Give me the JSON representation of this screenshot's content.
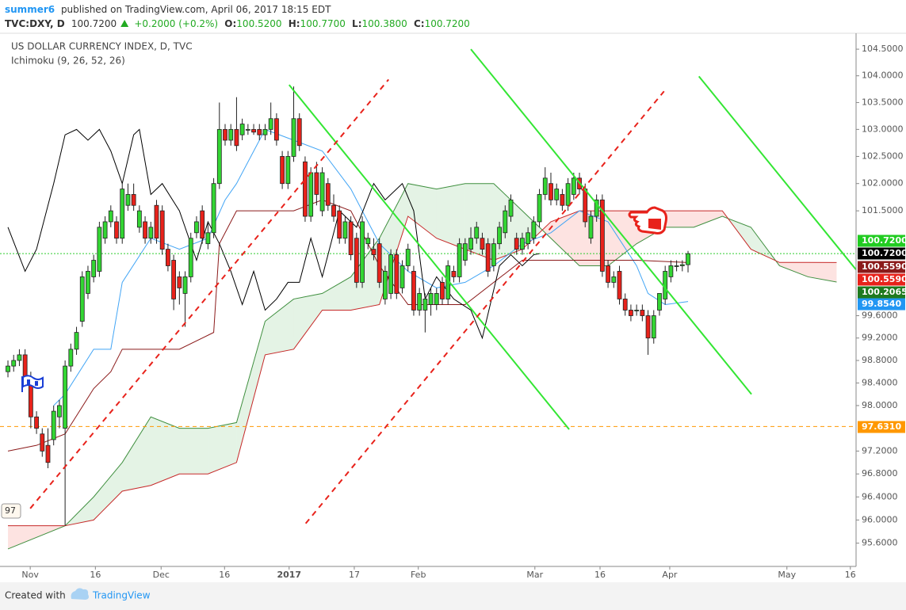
{
  "header": {
    "author": "summer6",
    "published": "published on TradingView.com, April 06, 2017 18:15 EDT",
    "symbol": "TVC:DXY, D",
    "last": "100.7200",
    "change": "+0.2000 (+0.2%)",
    "ohlc": [
      {
        "label": "O:",
        "value": "100.5200"
      },
      {
        "label": "H:",
        "value": "100.7700"
      },
      {
        "label": "L:",
        "value": "100.3800"
      },
      {
        "label": "C:",
        "value": "100.7200"
      }
    ]
  },
  "footer": {
    "created": "Created with",
    "brand": "TradingView"
  },
  "chart_data": {
    "type": "candlestick",
    "title": "US DOLLAR CURRENCY INDEX, D, TVC",
    "indicator": "Ichimoku (9, 26, 52, 26)",
    "log_scale": true,
    "grid": false,
    "left_label": "97",
    "xlim": [
      -1.39,
      148.4
    ],
    "ylim": [
      95.2,
      104.8
    ],
    "xticks": [
      {
        "value": 3.9,
        "label": "Nov"
      },
      {
        "value": 15.3,
        "label": "16"
      },
      {
        "value": 26.8,
        "label": "Dec"
      },
      {
        "value": 37.9,
        "label": "16"
      },
      {
        "value": 49.2,
        "label": "2017"
      },
      {
        "value": 60.6,
        "label": "17"
      },
      {
        "value": 71.8,
        "label": "Feb"
      },
      {
        "value": 92.2,
        "label": "Mar"
      },
      {
        "value": 103.6,
        "label": "16"
      },
      {
        "value": 115.8,
        "label": "Apr"
      },
      {
        "value": 136.3,
        "label": "May"
      },
      {
        "value": 147.4,
        "label": "16"
      }
    ],
    "yticks": [
      {
        "value": 104.5,
        "label": "104.5000"
      },
      {
        "value": 104.0,
        "label": "104.0000"
      },
      {
        "value": 103.5,
        "label": "103.5000"
      },
      {
        "value": 103.0,
        "label": "103.0000"
      },
      {
        "value": 102.5,
        "label": "102.5000"
      },
      {
        "value": 102.0,
        "label": "102.0000"
      },
      {
        "value": 101.5,
        "label": "101.5000"
      },
      {
        "value": 99.6,
        "label": "99.6000"
      },
      {
        "value": 99.2,
        "label": "99.2000"
      },
      {
        "value": 98.8,
        "label": "98.8000"
      },
      {
        "value": 98.4,
        "label": "98.4000"
      },
      {
        "value": 98.0,
        "label": "98.0000"
      },
      {
        "value": 97.2,
        "label": "97.2000"
      },
      {
        "value": 96.8,
        "label": "96.8000"
      },
      {
        "value": 96.4,
        "label": "96.4000"
      },
      {
        "value": 96.0,
        "label": "96.0000"
      },
      {
        "value": 95.6,
        "label": "95.6000"
      }
    ],
    "up_color": "#33d633",
    "down_color": "#e8221b",
    "ohlc": [
      [
        98.6,
        98.8,
        98.5,
        98.7
      ],
      [
        98.7,
        98.9,
        98.6,
        98.8
      ],
      [
        98.8,
        99.0,
        98.7,
        98.9
      ],
      [
        98.9,
        99.0,
        98.4,
        98.5
      ],
      [
        98.5,
        98.6,
        97.6,
        97.8
      ],
      [
        97.8,
        97.9,
        97.5,
        97.6
      ],
      [
        97.5,
        97.6,
        97.1,
        97.2
      ],
      [
        97.3,
        97.6,
        96.9,
        97.0
      ],
      [
        97.4,
        98.0,
        97.3,
        97.9
      ],
      [
        97.8,
        98.1,
        97.6,
        98.0
      ],
      [
        97.6,
        98.8,
        95.9,
        98.7
      ],
      [
        98.7,
        99.1,
        98.6,
        99.0
      ],
      [
        99.0,
        99.4,
        98.9,
        99.3
      ],
      [
        99.5,
        100.4,
        99.4,
        100.3
      ],
      [
        100.0,
        100.5,
        99.9,
        100.4
      ],
      [
        100.3,
        100.7,
        100.2,
        100.6
      ],
      [
        100.4,
        101.3,
        100.3,
        101.2
      ],
      [
        101.0,
        101.4,
        100.9,
        101.3
      ],
      [
        101.3,
        101.6,
        101.2,
        101.5
      ],
      [
        101.3,
        101.4,
        100.9,
        101.0
      ],
      [
        101.0,
        102.0,
        100.9,
        101.9
      ],
      [
        101.6,
        102.0,
        101.5,
        101.8
      ],
      [
        101.8,
        102.0,
        101.5,
        101.6
      ],
      [
        101.2,
        101.6,
        101.1,
        101.5
      ],
      [
        101.3,
        101.4,
        100.9,
        101.0
      ],
      [
        101.0,
        101.3,
        100.9,
        101.2
      ],
      [
        101.6,
        101.7,
        100.9,
        101.0
      ],
      [
        101.5,
        101.6,
        100.7,
        100.8
      ],
      [
        100.8,
        100.9,
        100.4,
        100.5
      ],
      [
        100.6,
        100.7,
        99.7,
        99.9
      ],
      [
        100.3,
        100.4,
        99.8,
        100.1
      ],
      [
        100.0,
        100.4,
        99.4,
        100.3
      ],
      [
        100.3,
        101.1,
        100.2,
        101.0
      ],
      [
        101.1,
        101.4,
        101.0,
        101.3
      ],
      [
        101.5,
        101.6,
        100.9,
        101.0
      ],
      [
        100.9,
        101.3,
        100.8,
        101.1
      ],
      [
        101.1,
        102.1,
        101.0,
        102.0
      ],
      [
        102.0,
        103.5,
        101.9,
        103.0
      ],
      [
        103.0,
        103.1,
        102.7,
        102.8
      ],
      [
        102.8,
        103.1,
        102.7,
        103.0
      ],
      [
        103.0,
        103.6,
        102.6,
        102.7
      ],
      [
        102.9,
        103.2,
        102.8,
        103.1
      ],
      [
        103.0,
        103.1,
        102.9,
        103.0
      ],
      [
        103.0,
        103.1,
        102.9,
        102.95
      ],
      [
        103.0,
        103.1,
        102.8,
        102.9
      ],
      [
        102.9,
        103.1,
        102.8,
        103.0
      ],
      [
        103.0,
        103.5,
        102.9,
        103.2
      ],
      [
        103.2,
        103.3,
        102.7,
        102.8
      ],
      [
        102.5,
        102.6,
        101.9,
        102.0
      ],
      [
        102.0,
        102.6,
        101.9,
        102.5
      ],
      [
        102.5,
        103.8,
        102.4,
        103.2
      ],
      [
        103.2,
        103.3,
        102.6,
        102.7
      ],
      [
        102.4,
        102.5,
        101.3,
        101.4
      ],
      [
        101.4,
        102.3,
        101.3,
        102.2
      ],
      [
        102.2,
        102.4,
        101.6,
        101.8
      ],
      [
        101.5,
        102.3,
        101.4,
        102.2
      ],
      [
        102.0,
        102.1,
        101.5,
        101.6
      ],
      [
        101.6,
        101.8,
        101.3,
        101.4
      ],
      [
        101.5,
        101.6,
        100.9,
        101.0
      ],
      [
        101.0,
        101.4,
        100.9,
        101.3
      ],
      [
        101.3,
        101.4,
        100.6,
        100.7
      ],
      [
        101.0,
        101.1,
        100.1,
        100.2
      ],
      [
        100.2,
        101.4,
        100.1,
        101.3
      ],
      [
        100.9,
        101.1,
        100.8,
        101.0
      ],
      [
        100.8,
        101.0,
        100.6,
        100.7
      ],
      [
        100.9,
        101.0,
        100.1,
        100.2
      ],
      [
        99.9,
        100.5,
        99.8,
        100.4
      ],
      [
        100.0,
        100.8,
        99.9,
        100.7
      ],
      [
        100.7,
        100.8,
        99.9,
        100.0
      ],
      [
        100.1,
        100.6,
        100.0,
        100.5
      ],
      [
        100.5,
        100.9,
        100.4,
        100.8
      ],
      [
        100.4,
        100.5,
        99.6,
        99.7
      ],
      [
        99.7,
        100.1,
        99.6,
        100.0
      ],
      [
        99.7,
        100.0,
        99.3,
        99.9
      ],
      [
        99.8,
        100.1,
        99.6,
        100.0
      ],
      [
        99.8,
        100.1,
        99.7,
        100.0
      ],
      [
        100.2,
        100.3,
        99.8,
        99.9
      ],
      [
        99.9,
        100.6,
        99.8,
        100.5
      ],
      [
        100.4,
        100.5,
        100.2,
        100.3
      ],
      [
        100.3,
        101.0,
        100.2,
        100.9
      ],
      [
        100.6,
        101.0,
        100.5,
        100.9
      ],
      [
        100.8,
        101.2,
        100.7,
        101.0
      ],
      [
        101.0,
        101.3,
        100.9,
        101.2
      ],
      [
        101.0,
        101.1,
        100.7,
        100.8
      ],
      [
        100.9,
        101.0,
        100.3,
        100.4
      ],
      [
        100.5,
        101.0,
        100.4,
        100.9
      ],
      [
        100.9,
        101.3,
        100.8,
        101.2
      ],
      [
        101.1,
        101.6,
        101.0,
        101.5
      ],
      [
        101.4,
        101.8,
        101.3,
        101.7
      ],
      [
        101.0,
        101.1,
        100.7,
        100.8
      ],
      [
        100.8,
        101.1,
        100.7,
        101.0
      ],
      [
        100.9,
        101.2,
        100.8,
        101.1
      ],
      [
        101.0,
        101.4,
        100.9,
        101.3
      ],
      [
        101.3,
        101.9,
        101.2,
        101.8
      ],
      [
        101.8,
        102.3,
        101.7,
        102.1
      ],
      [
        102.0,
        102.2,
        101.6,
        101.7
      ],
      [
        101.7,
        102.0,
        101.6,
        101.9
      ],
      [
        101.8,
        101.9,
        101.5,
        101.6
      ],
      [
        101.6,
        102.1,
        101.5,
        102.0
      ],
      [
        101.8,
        102.2,
        101.7,
        102.1
      ],
      [
        102.1,
        102.2,
        101.8,
        101.9
      ],
      [
        101.9,
        102.0,
        101.2,
        101.3
      ],
      [
        101.0,
        101.5,
        100.9,
        101.4
      ],
      [
        101.4,
        101.8,
        101.3,
        101.7
      ],
      [
        101.7,
        101.8,
        100.3,
        100.4
      ],
      [
        100.5,
        100.6,
        100.1,
        100.2
      ],
      [
        100.2,
        100.4,
        100.1,
        100.3
      ],
      [
        100.4,
        100.5,
        99.8,
        99.9
      ],
      [
        99.9,
        100.0,
        99.6,
        99.7
      ],
      [
        99.7,
        99.8,
        99.5,
        99.6
      ],
      [
        99.7,
        99.8,
        99.6,
        99.7
      ],
      [
        99.7,
        99.8,
        99.5,
        99.6
      ],
      [
        99.6,
        99.7,
        98.9,
        99.2
      ],
      [
        99.2,
        99.7,
        99.1,
        99.6
      ],
      [
        99.7,
        100.0,
        99.6,
        100.0
      ],
      [
        99.9,
        100.5,
        99.8,
        100.4
      ],
      [
        100.3,
        100.6,
        100.2,
        100.5
      ],
      [
        100.5,
        100.6,
        100.4,
        100.5
      ],
      [
        100.5,
        100.6,
        100.4,
        100.52
      ],
      [
        100.52,
        100.77,
        100.38,
        100.72
      ]
    ],
    "lines": [
      {
        "color": "#42a5f5",
        "x": [
          8,
          10,
          15,
          18,
          20,
          25,
          30,
          35,
          38,
          40,
          45,
          50,
          55,
          60,
          65,
          70,
          75,
          80,
          85,
          90,
          95,
          100,
          105,
          110,
          112,
          115,
          119
        ],
        "values": [
          98.0,
          98.2,
          99.0,
          99.0,
          100.2,
          101.0,
          100.8,
          101.0,
          101.7,
          102.0,
          103.0,
          102.8,
          102.6,
          101.9,
          100.9,
          100.4,
          100.1,
          100.2,
          100.5,
          100.9,
          101.1,
          101.5,
          101.3,
          100.5,
          100.0,
          99.8,
          99.854
        ]
      },
      {
        "color": "#8b1a1a",
        "x": [
          0,
          5,
          10,
          15,
          18,
          20,
          25,
          30,
          36,
          37,
          40,
          50,
          55,
          60,
          65,
          70,
          80,
          90,
          95,
          100,
          105,
          110,
          119
        ],
        "values": [
          97.2,
          97.3,
          97.5,
          98.3,
          98.6,
          99.0,
          99.0,
          99.0,
          99.3,
          100.9,
          101.5,
          101.5,
          101.7,
          101.5,
          100.5,
          99.8,
          99.8,
          100.6,
          100.6,
          100.6,
          100.6,
          100.6,
          100.559
        ]
      },
      {
        "color": "#000000",
        "x": [
          0,
          3,
          5,
          8,
          10,
          12,
          14,
          16,
          18,
          20,
          22,
          23,
          25,
          27,
          30,
          33,
          35,
          37,
          39,
          41,
          43,
          45,
          47,
          49,
          51,
          53,
          55,
          58,
          61,
          64,
          66,
          69,
          71,
          73,
          75,
          78,
          81,
          83,
          86,
          88,
          90,
          92,
          93
        ],
        "values": [
          101.2,
          100.4,
          100.8,
          102.0,
          102.9,
          103.0,
          102.8,
          103.0,
          102.6,
          102.0,
          102.9,
          103.0,
          101.8,
          102.0,
          101.5,
          100.6,
          101.3,
          100.9,
          100.4,
          99.8,
          100.4,
          99.7,
          99.9,
          100.2,
          100.2,
          101.0,
          100.3,
          101.5,
          101.2,
          102.0,
          101.7,
          102.0,
          101.5,
          99.9,
          100.3,
          99.9,
          99.7,
          99.2,
          100.5,
          100.7,
          100.5,
          100.7,
          100.72
        ]
      }
    ],
    "cloud": {
      "up_color": "#4caf50",
      "down_color": "#f44336",
      "span_a": {
        "color": "#3f8f3f",
        "x": [
          0,
          10,
          15,
          20,
          25,
          30,
          35,
          40,
          45,
          50,
          55,
          60,
          65,
          70,
          75,
          80,
          85,
          90,
          95,
          100,
          105,
          110,
          115,
          120,
          125,
          130,
          135,
          140,
          145
        ],
        "values": [
          95.5,
          95.9,
          96.4,
          97.0,
          97.8,
          97.6,
          97.6,
          97.7,
          99.5,
          99.9,
          100.0,
          100.3,
          101.0,
          102.0,
          101.9,
          102.0,
          102.0,
          101.5,
          101.0,
          100.5,
          100.5,
          100.9,
          101.2,
          101.2,
          101.4,
          101.2,
          100.5,
          100.3,
          100.2065
        ]
      },
      "span_b": {
        "color": "#c62828",
        "x": [
          0,
          10,
          15,
          20,
          25,
          30,
          35,
          40,
          45,
          50,
          55,
          60,
          65,
          70,
          75,
          80,
          85,
          90,
          95,
          100,
          105,
          110,
          115,
          120,
          125,
          130,
          135,
          140,
          145
        ],
        "values": [
          95.9,
          95.9,
          96.0,
          96.5,
          96.6,
          96.8,
          96.8,
          97.0,
          98.9,
          99.0,
          99.7,
          99.7,
          99.8,
          101.4,
          101.0,
          100.8,
          100.6,
          100.8,
          101.3,
          101.5,
          101.5,
          101.5,
          101.5,
          101.5,
          101.5,
          100.8,
          100.56,
          100.56,
          100.559
        ]
      }
    },
    "trend_lines": [
      {
        "color": "#33e633",
        "dash": false,
        "x": [
          49.2,
          98.2
        ],
        "values": [
          103.83,
          97.58
        ]
      },
      {
        "color": "#33e633",
        "dash": false,
        "x": [
          81.0,
          130.1
        ],
        "values": [
          104.5,
          98.2
        ]
      },
      {
        "color": "#33e633",
        "dash": false,
        "x": [
          120.9,
          148.4
        ],
        "values": [
          103.99,
          100.43
        ]
      },
      {
        "color": "#e8221b",
        "dash": true,
        "x": [
          3.9,
          66.6
        ],
        "values": [
          96.2,
          103.93
        ]
      },
      {
        "color": "#e8221b",
        "dash": true,
        "x": [
          52.1,
          114.8
        ],
        "values": [
          95.94,
          103.71
        ]
      }
    ],
    "hlines": [
      {
        "value": 100.72,
        "color": "#2ecc2e",
        "dash": "2,2"
      },
      {
        "value": 97.631,
        "color": "#ff9800",
        "dash": "5,4"
      }
    ],
    "price_labels": [
      {
        "value": 100.72,
        "label": "100.7200",
        "color": "#22cc22"
      },
      {
        "value": 100.72,
        "label": "100.7200",
        "color": "#000000"
      },
      {
        "value": 100.559,
        "label": "100.5590",
        "color": "#8b1a1a"
      },
      {
        "value": 100.559,
        "label": "100.5590",
        "color": "#e8221b"
      },
      {
        "value": 100.2065,
        "label": "100.2065",
        "color": "#1f7a1f"
      },
      {
        "value": 99.854,
        "label": "99.8540",
        "color": "#2196f3"
      },
      {
        "value": 97.631,
        "label": "97.6310",
        "color": "#ff9800"
      }
    ]
  }
}
